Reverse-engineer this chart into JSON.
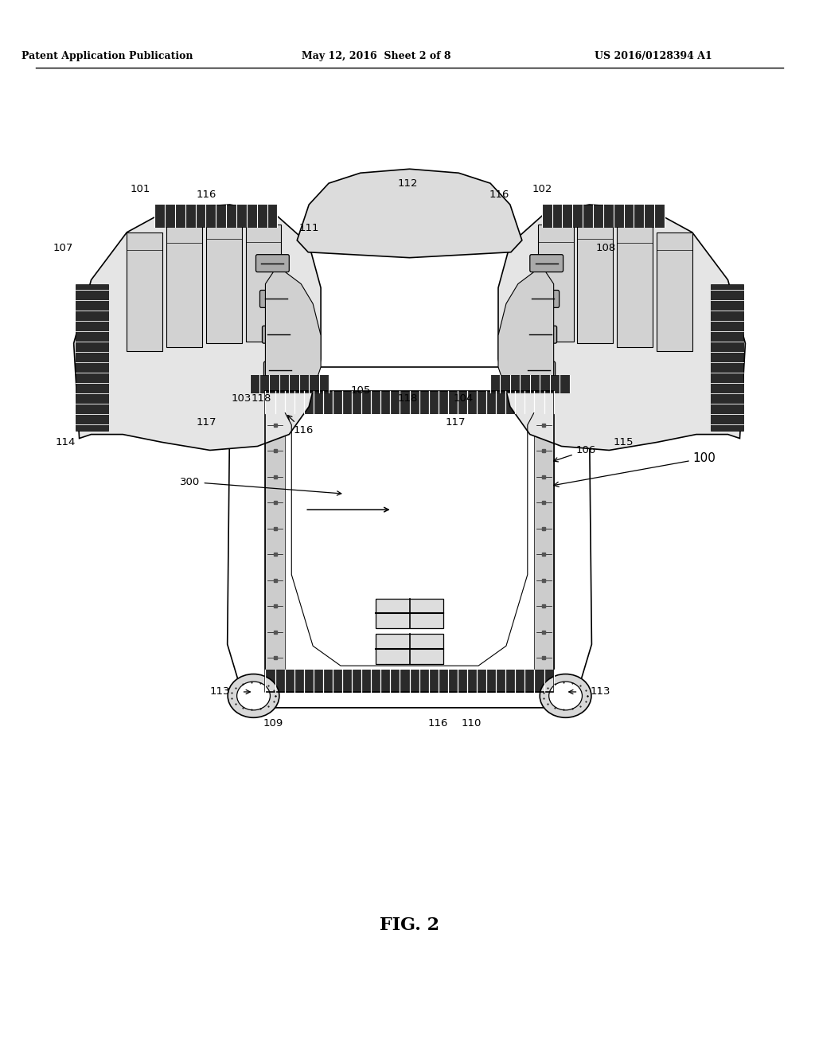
{
  "title": "FIG. 2",
  "header_left": "Patent Application Publication",
  "header_mid": "May 12, 2016  Sheet 2 of 8",
  "header_right": "US 2016/0128394 A1",
  "background_color": "#ffffff",
  "line_color": "#000000"
}
